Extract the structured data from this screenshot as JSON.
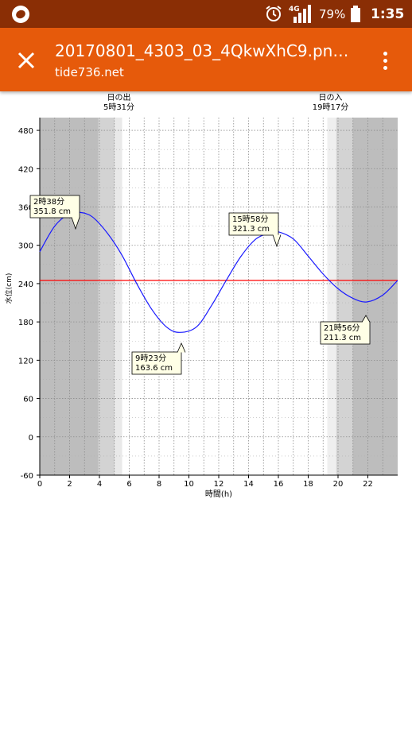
{
  "status_bar": {
    "network": "4G",
    "battery_percent": "79%",
    "time": "1:35"
  },
  "app_bar": {
    "title": "20170801_4303_03_4QkwXhC9.pn…",
    "subtitle": "tide736.net"
  },
  "chart_data": {
    "type": "line",
    "xlabel": "時間(h)",
    "ylabel": "水位(cm)",
    "xlim": [
      0,
      24
    ],
    "ylim": [
      -60,
      500
    ],
    "x_ticks": [
      0,
      2,
      4,
      6,
      8,
      10,
      12,
      14,
      16,
      18,
      20,
      22
    ],
    "y_ticks": [
      -60,
      0,
      60,
      120,
      180,
      240,
      300,
      360,
      420,
      480
    ],
    "grid": true,
    "sunrise": {
      "label": "日の出",
      "time_label": "5時31分",
      "hour": 5.52
    },
    "sunset": {
      "label": "日の入",
      "time_label": "19時17分",
      "hour": 19.28
    },
    "reference_line": {
      "value": 245,
      "color": "#ff0000"
    },
    "series": [
      {
        "color": "#1a1aff",
        "x": [
          0,
          1,
          2,
          2.63,
          3.5,
          4.5,
          5.5,
          6.5,
          7.5,
          8.5,
          9.38,
          10.5,
          11.5,
          12.5,
          13.5,
          14.5,
          15.5,
          15.97,
          17,
          18,
          19,
          20,
          21,
          21.93,
          23,
          24
        ],
        "y": [
          290,
          330,
          350,
          351.8,
          345,
          320,
          285,
          240,
          200,
          172,
          163.6,
          172,
          205,
          245,
          283,
          310,
          320,
          321.3,
          310,
          283,
          255,
          232,
          217,
          211.3,
          222,
          245
        ]
      }
    ],
    "annotations": [
      {
        "time": "2時38分",
        "value": "351.8 cm"
      },
      {
        "time": "9時23分",
        "value": "163.6 cm"
      },
      {
        "time": "15時58分",
        "value": "321.3 cm"
      },
      {
        "time": "21時56分",
        "value": "211.3 cm"
      }
    ]
  }
}
